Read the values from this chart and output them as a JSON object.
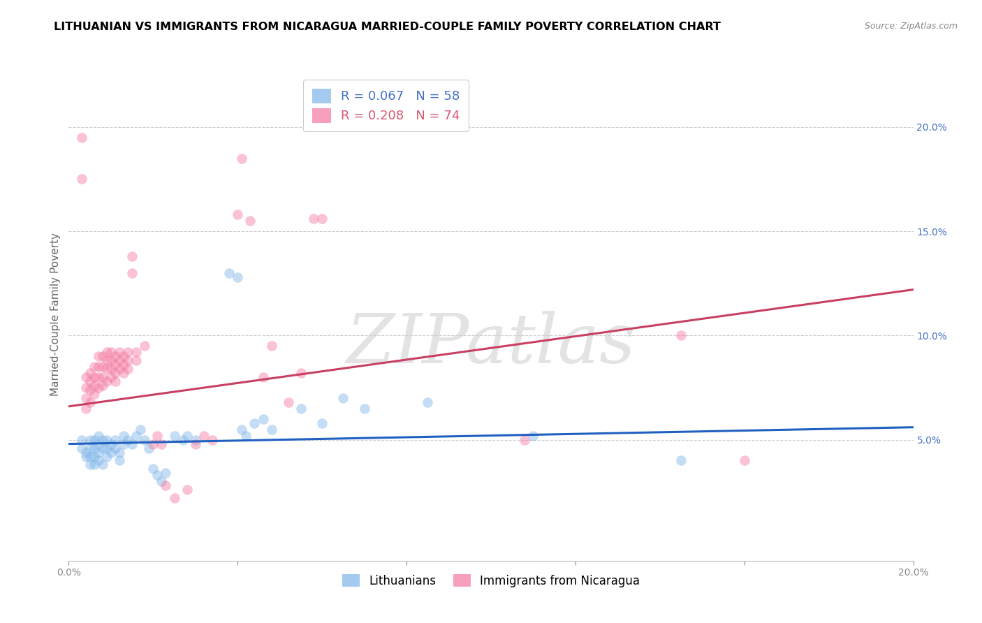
{
  "title": "LITHUANIAN VS IMMIGRANTS FROM NICARAGUA MARRIED-COUPLE FAMILY POVERTY CORRELATION CHART",
  "source": "Source: ZipAtlas.com",
  "ylabel": "Married-Couple Family Poverty",
  "xlim": [
    0.0,
    0.2
  ],
  "ylim": [
    -0.008,
    0.228
  ],
  "y_ticks_right": [
    0.05,
    0.1,
    0.15,
    0.2
  ],
  "y_tick_labels_right": [
    "5.0%",
    "10.0%",
    "15.0%",
    "20.0%"
  ],
  "blue_scatter": [
    [
      0.003,
      0.05
    ],
    [
      0.003,
      0.046
    ],
    [
      0.004,
      0.044
    ],
    [
      0.004,
      0.042
    ],
    [
      0.005,
      0.05
    ],
    [
      0.005,
      0.046
    ],
    [
      0.005,
      0.042
    ],
    [
      0.005,
      0.038
    ],
    [
      0.006,
      0.05
    ],
    [
      0.006,
      0.046
    ],
    [
      0.006,
      0.042
    ],
    [
      0.006,
      0.038
    ],
    [
      0.007,
      0.052
    ],
    [
      0.007,
      0.048
    ],
    [
      0.007,
      0.044
    ],
    [
      0.007,
      0.04
    ],
    [
      0.008,
      0.05
    ],
    [
      0.008,
      0.046
    ],
    [
      0.008,
      0.038
    ],
    [
      0.009,
      0.05
    ],
    [
      0.009,
      0.046
    ],
    [
      0.009,
      0.042
    ],
    [
      0.01,
      0.048
    ],
    [
      0.01,
      0.044
    ],
    [
      0.011,
      0.05
    ],
    [
      0.011,
      0.046
    ],
    [
      0.012,
      0.044
    ],
    [
      0.012,
      0.04
    ],
    [
      0.013,
      0.052
    ],
    [
      0.013,
      0.048
    ],
    [
      0.014,
      0.05
    ],
    [
      0.015,
      0.048
    ],
    [
      0.016,
      0.052
    ],
    [
      0.017,
      0.055
    ],
    [
      0.018,
      0.05
    ],
    [
      0.019,
      0.046
    ],
    [
      0.02,
      0.036
    ],
    [
      0.021,
      0.033
    ],
    [
      0.022,
      0.03
    ],
    [
      0.023,
      0.034
    ],
    [
      0.025,
      0.052
    ],
    [
      0.027,
      0.05
    ],
    [
      0.028,
      0.052
    ],
    [
      0.03,
      0.05
    ],
    [
      0.038,
      0.13
    ],
    [
      0.04,
      0.128
    ],
    [
      0.041,
      0.055
    ],
    [
      0.042,
      0.052
    ],
    [
      0.044,
      0.058
    ],
    [
      0.046,
      0.06
    ],
    [
      0.048,
      0.055
    ],
    [
      0.055,
      0.065
    ],
    [
      0.06,
      0.058
    ],
    [
      0.065,
      0.07
    ],
    [
      0.07,
      0.065
    ],
    [
      0.085,
      0.068
    ],
    [
      0.11,
      0.052
    ],
    [
      0.145,
      0.04
    ]
  ],
  "pink_scatter": [
    [
      0.003,
      0.195
    ],
    [
      0.003,
      0.175
    ],
    [
      0.004,
      0.08
    ],
    [
      0.004,
      0.075
    ],
    [
      0.004,
      0.07
    ],
    [
      0.004,
      0.065
    ],
    [
      0.005,
      0.082
    ],
    [
      0.005,
      0.078
    ],
    [
      0.005,
      0.074
    ],
    [
      0.005,
      0.068
    ],
    [
      0.006,
      0.085
    ],
    [
      0.006,
      0.08
    ],
    [
      0.006,
      0.076
    ],
    [
      0.006,
      0.072
    ],
    [
      0.007,
      0.09
    ],
    [
      0.007,
      0.085
    ],
    [
      0.007,
      0.08
    ],
    [
      0.007,
      0.075
    ],
    [
      0.008,
      0.09
    ],
    [
      0.008,
      0.085
    ],
    [
      0.008,
      0.08
    ],
    [
      0.008,
      0.076
    ],
    [
      0.009,
      0.092
    ],
    [
      0.009,
      0.088
    ],
    [
      0.009,
      0.084
    ],
    [
      0.009,
      0.078
    ],
    [
      0.01,
      0.092
    ],
    [
      0.01,
      0.088
    ],
    [
      0.01,
      0.084
    ],
    [
      0.01,
      0.08
    ],
    [
      0.011,
      0.09
    ],
    [
      0.011,
      0.086
    ],
    [
      0.011,
      0.082
    ],
    [
      0.011,
      0.078
    ],
    [
      0.012,
      0.092
    ],
    [
      0.012,
      0.088
    ],
    [
      0.012,
      0.084
    ],
    [
      0.013,
      0.09
    ],
    [
      0.013,
      0.086
    ],
    [
      0.013,
      0.082
    ],
    [
      0.014,
      0.092
    ],
    [
      0.014,
      0.088
    ],
    [
      0.014,
      0.084
    ],
    [
      0.015,
      0.138
    ],
    [
      0.015,
      0.13
    ],
    [
      0.016,
      0.092
    ],
    [
      0.016,
      0.088
    ],
    [
      0.018,
      0.095
    ],
    [
      0.02,
      0.048
    ],
    [
      0.021,
      0.052
    ],
    [
      0.022,
      0.048
    ],
    [
      0.023,
      0.028
    ],
    [
      0.025,
      0.022
    ],
    [
      0.028,
      0.026
    ],
    [
      0.03,
      0.048
    ],
    [
      0.032,
      0.052
    ],
    [
      0.034,
      0.05
    ],
    [
      0.04,
      0.158
    ],
    [
      0.041,
      0.185
    ],
    [
      0.043,
      0.155
    ],
    [
      0.046,
      0.08
    ],
    [
      0.048,
      0.095
    ],
    [
      0.052,
      0.068
    ],
    [
      0.055,
      0.082
    ],
    [
      0.058,
      0.156
    ],
    [
      0.06,
      0.156
    ],
    [
      0.108,
      0.05
    ],
    [
      0.145,
      0.1
    ],
    [
      0.16,
      0.04
    ]
  ],
  "blue_line_x": [
    0.0,
    0.2
  ],
  "blue_line_y": [
    0.048,
    0.056
  ],
  "pink_line_x": [
    0.0,
    0.2
  ],
  "pink_line_y": [
    0.066,
    0.122
  ],
  "dot_size": 110,
  "dot_alpha": 0.45,
  "blue_color": "#7EB4EA",
  "pink_color": "#F478A0",
  "blue_line_color": "#2060C0",
  "pink_line_color": "#C84060",
  "watermark": "ZIPatlas",
  "background_color": "#FFFFFF",
  "grid_color": "#CCCCCC",
  "title_fontsize": 11.5,
  "axis_label_fontsize": 11,
  "tick_fontsize": 10,
  "right_tick_color": "#4472C4",
  "legend_blue_color": "#4472C4",
  "legend_pink_color": "#D45870"
}
